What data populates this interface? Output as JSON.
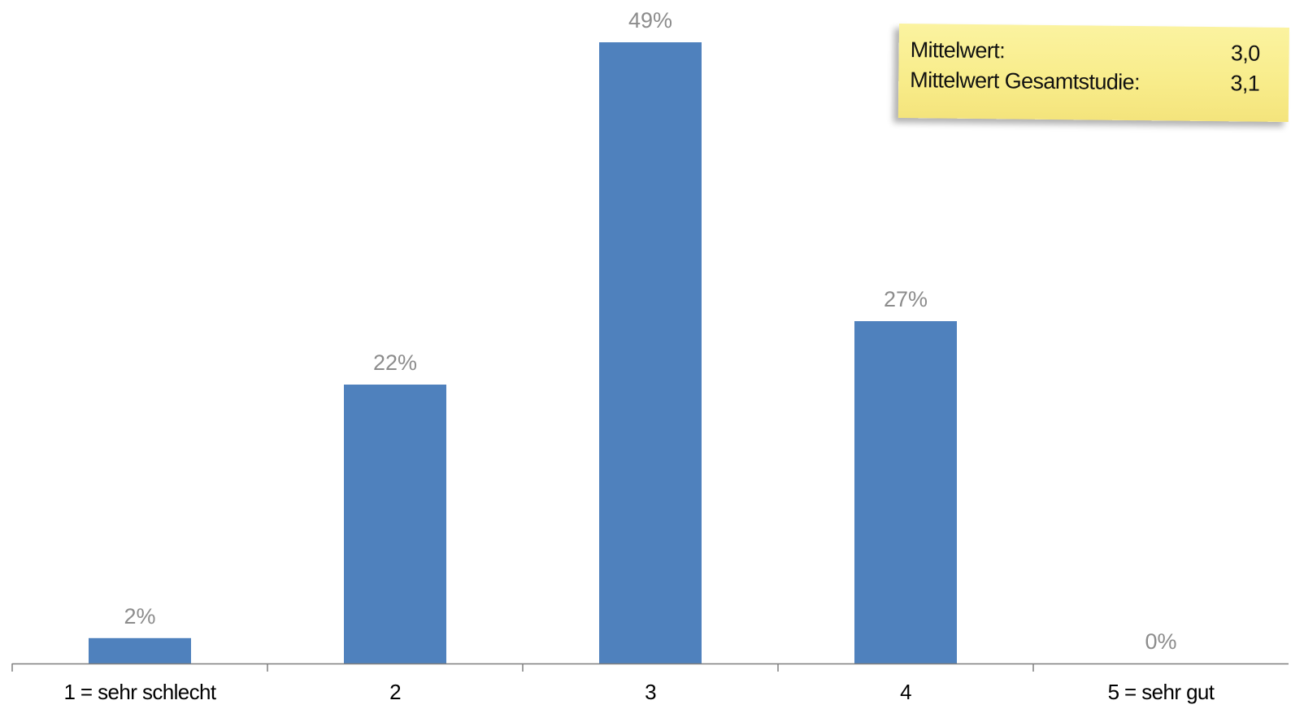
{
  "chart_data": {
    "type": "bar",
    "categories": [
      "1 = sehr schlecht",
      "2",
      "3",
      "4",
      "5 = sehr gut"
    ],
    "values": [
      2,
      22,
      49,
      27,
      0
    ],
    "value_labels": [
      "2%",
      "22%",
      "49%",
      "27%",
      "0%"
    ],
    "unit": "%",
    "ylim": [
      0,
      49
    ],
    "grid": false,
    "bar_color": "#4f81bd",
    "label_color": "#8c8c8c",
    "axis_color": "#7f7f7f"
  },
  "note": {
    "rows": [
      {
        "label": "Mittelwert:",
        "value": "3,0"
      },
      {
        "label": "Mittelwert Gesamtstudie:",
        "value": "3,1"
      }
    ],
    "color": "#f8ec8a"
  }
}
